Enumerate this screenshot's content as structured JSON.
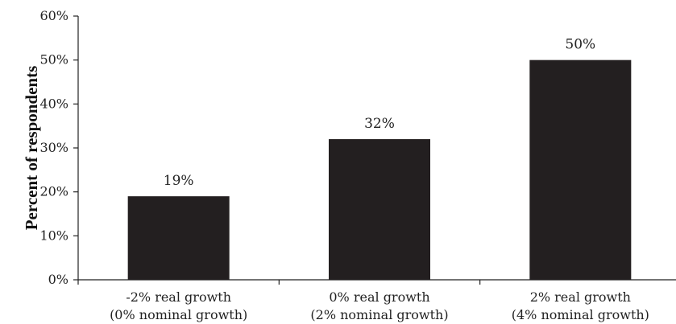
{
  "chart_data": {
    "type": "bar",
    "categories": [
      [
        "-2% real growth",
        "(0% nominal growth)"
      ],
      [
        "0% real growth",
        "(2% nominal growth)"
      ],
      [
        "2% real growth",
        "(4% nominal growth)"
      ]
    ],
    "values": [
      19,
      32,
      50
    ],
    "value_labels": [
      "19%",
      "32%",
      "50%"
    ],
    "title": "",
    "xlabel": "",
    "ylabel": "Percent of respondents",
    "ylim": [
      0,
      60
    ],
    "yticks": [
      0,
      10,
      20,
      30,
      40,
      50,
      60
    ],
    "ytick_labels": [
      "0%",
      "10%",
      "20%",
      "30%",
      "40%",
      "50%",
      "60%"
    ],
    "grid": false,
    "legend": "none",
    "bar_color": "#231f20"
  }
}
